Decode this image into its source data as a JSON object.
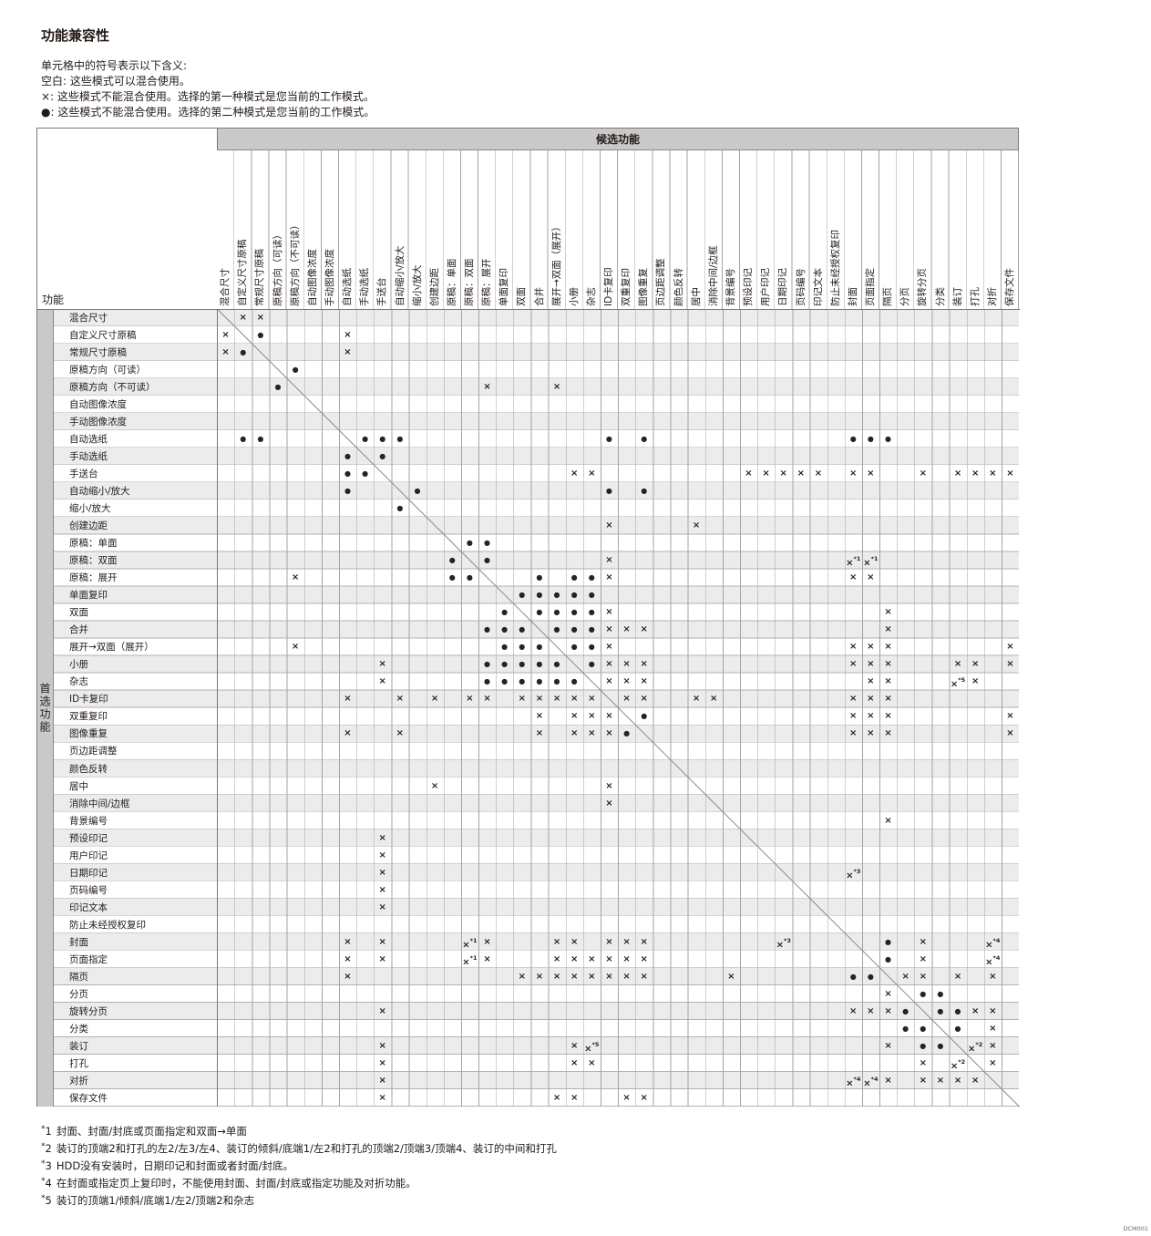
{
  "page": {
    "title": "功能兼容性",
    "legend": [
      "单元格中的符号表示以下含义:",
      "空白: 这些模式可以混合使用。",
      "×: 这些模式不能混合使用。选择的第一种模式是您当前的工作模式。",
      "●: 这些模式不能混合使用。选择的第二种模式是您当前的工作模式。"
    ],
    "watermark": "DCM001"
  },
  "matrix": {
    "corner_label": "功能",
    "corner_label_rotated": "功能",
    "col_group_header": "候选功能",
    "row_group_header": "首选功能",
    "symbols": {
      "x": "×",
      "d": "●"
    },
    "functions": [
      "混合尺寸",
      "自定义尺寸原稿",
      "常规尺寸原稿",
      "原稿方向（可读）",
      "原稿方向（不可读）",
      "自动图像浓度",
      "手动图像浓度",
      "自动选纸",
      "手动选纸",
      "手送台",
      "自动缩小/放大",
      "缩小/放大",
      "创建边距",
      "原稿：单面",
      "原稿：双面",
      "原稿：展开",
      "单面复印",
      "双面",
      "合并",
      "展开→双面（展开）",
      "小册",
      "杂志",
      "ID卡复印",
      "双重复印",
      "图像重复",
      "页边距调整",
      "颜色反转",
      "居中",
      "消除中间/边框",
      "背景编号",
      "预设印记",
      "用户印记",
      "日期印记",
      "页码编号",
      "印记文本",
      "防止未经授权复印",
      "封面",
      "页面指定",
      "隔页",
      "分页",
      "旋转分页",
      "分类",
      "装订",
      "打孔",
      "对折",
      "保存文件"
    ],
    "marks": [
      [
        "2:x",
        "3:x"
      ],
      [
        "1:x",
        "3:d",
        "8:x"
      ],
      [
        "1:x",
        "2:d",
        "8:x"
      ],
      [
        "5:d"
      ],
      [
        "4:d",
        "16:x",
        "20:x"
      ],
      [],
      [],
      [
        "2:d",
        "3:d",
        "9:d",
        "10:d",
        "11:d",
        "23:d",
        "25:d",
        "37:d",
        "38:d",
        "39:d"
      ],
      [
        "8:d",
        "10:d"
      ],
      [
        "8:d",
        "9:d",
        "21:x",
        "22:x",
        "31:x",
        "32:x",
        "33:x",
        "34:x",
        "35:x",
        "37:x",
        "38:x",
        "41:x",
        "43:x",
        "44:x",
        "45:x",
        "46:x"
      ],
      [
        "8:d",
        "12:d",
        "23:d",
        "25:d"
      ],
      [
        "11:d"
      ],
      [
        "23:x",
        "28:x"
      ],
      [
        "15:d",
        "16:d"
      ],
      [
        "14:d",
        "16:d",
        "23:x",
        "37:x:1",
        "38:x:1"
      ],
      [
        "5:x",
        "14:d",
        "15:d",
        "19:d",
        "21:d",
        "22:d",
        "23:x",
        "37:x",
        "38:x"
      ],
      [
        "18:d",
        "19:d",
        "20:d",
        "21:d",
        "22:d"
      ],
      [
        "17:d",
        "19:d",
        "20:d",
        "21:d",
        "22:d",
        "23:x",
        "39:x"
      ],
      [
        "16:d",
        "17:d",
        "18:d",
        "20:d",
        "21:d",
        "22:d",
        "23:x",
        "24:x",
        "25:x",
        "39:x"
      ],
      [
        "5:x",
        "17:d",
        "18:d",
        "19:d",
        "21:d",
        "22:d",
        "23:x",
        "37:x",
        "38:x",
        "39:x",
        "46:x"
      ],
      [
        "10:x",
        "16:d",
        "17:d",
        "18:d",
        "19:d",
        "20:d",
        "22:d",
        "23:x",
        "24:x",
        "25:x",
        "37:x",
        "38:x",
        "39:x",
        "43:x",
        "44:x",
        "46:x"
      ],
      [
        "10:x",
        "16:d",
        "17:d",
        "18:d",
        "19:d",
        "20:d",
        "21:d",
        "23:x",
        "24:x",
        "25:x",
        "38:x",
        "39:x",
        "43:x:5",
        "44:x"
      ],
      [
        "8:x",
        "11:x",
        "13:x",
        "15:x",
        "16:x",
        "18:x",
        "19:x",
        "20:x",
        "21:x",
        "22:x",
        "24:x",
        "25:x",
        "28:x",
        "29:x",
        "37:x",
        "38:x",
        "39:x"
      ],
      [
        "19:x",
        "21:x",
        "22:x",
        "23:x",
        "25:d",
        "37:x",
        "38:x",
        "39:x",
        "46:x"
      ],
      [
        "8:x",
        "11:x",
        "19:x",
        "21:x",
        "22:x",
        "23:x",
        "24:d",
        "37:x",
        "38:x",
        "39:x",
        "46:x"
      ],
      [],
      [],
      [
        "13:x",
        "23:x"
      ],
      [
        "23:x"
      ],
      [
        "39:x"
      ],
      [
        "10:x"
      ],
      [
        "10:x"
      ],
      [
        "10:x",
        "37:x:3"
      ],
      [
        "10:x"
      ],
      [
        "10:x"
      ],
      [],
      [
        "8:x",
        "10:x",
        "15:x:1",
        "16:x",
        "20:x",
        "21:x",
        "23:x",
        "24:x",
        "25:x",
        "33:x:3",
        "39:d",
        "41:x",
        "45:x:4"
      ],
      [
        "8:x",
        "10:x",
        "15:x:1",
        "16:x",
        "20:x",
        "21:x",
        "22:x",
        "23:x",
        "24:x",
        "25:x",
        "39:d",
        "41:x",
        "45:x:4"
      ],
      [
        "8:x",
        "18:x",
        "19:x",
        "20:x",
        "21:x",
        "22:x",
        "23:x",
        "24:x",
        "25:x",
        "30:x",
        "37:d",
        "38:d",
        "40:x",
        "41:x",
        "43:x",
        "45:x"
      ],
      [
        "39:x",
        "41:d",
        "42:d"
      ],
      [
        "10:x",
        "37:x",
        "38:x",
        "39:x",
        "40:d",
        "42:d",
        "43:d",
        "44:x",
        "45:x"
      ],
      [
        "40:d",
        "41:d",
        "43:d",
        "45:x"
      ],
      [
        "10:x",
        "21:x",
        "22:x:5",
        "39:x",
        "41:d",
        "42:d",
        "44:x:2",
        "45:x"
      ],
      [
        "10:x",
        "21:x",
        "22:x",
        "41:x",
        "43:x:2",
        "45:x"
      ],
      [
        "10:x",
        "37:x:4",
        "38:x:4",
        "39:x",
        "41:x",
        "42:x",
        "43:x",
        "44:x"
      ],
      [
        "10:x",
        "20:x",
        "21:x",
        "24:x",
        "25:x"
      ]
    ]
  },
  "footnotes": [
    {
      "num": "1",
      "text": "封面、封面/封底或页面指定和双面→单面"
    },
    {
      "num": "2",
      "text": "装订的顶端2和打孔的左2/左3/左4、装订的倾斜/底端1/左2和打孔的顶端2/顶端3/顶端4、装订的中间和打孔"
    },
    {
      "num": "3",
      "text": "HDD没有安装时，日期印记和封面或者封面/封底。"
    },
    {
      "num": "4",
      "text": "在封面或指定页上复印时，不能使用封面、封面/封底或指定功能及对折功能。"
    },
    {
      "num": "5",
      "text": "装订的顶端1/倾斜/底端1/左2/顶端2和杂志"
    }
  ]
}
